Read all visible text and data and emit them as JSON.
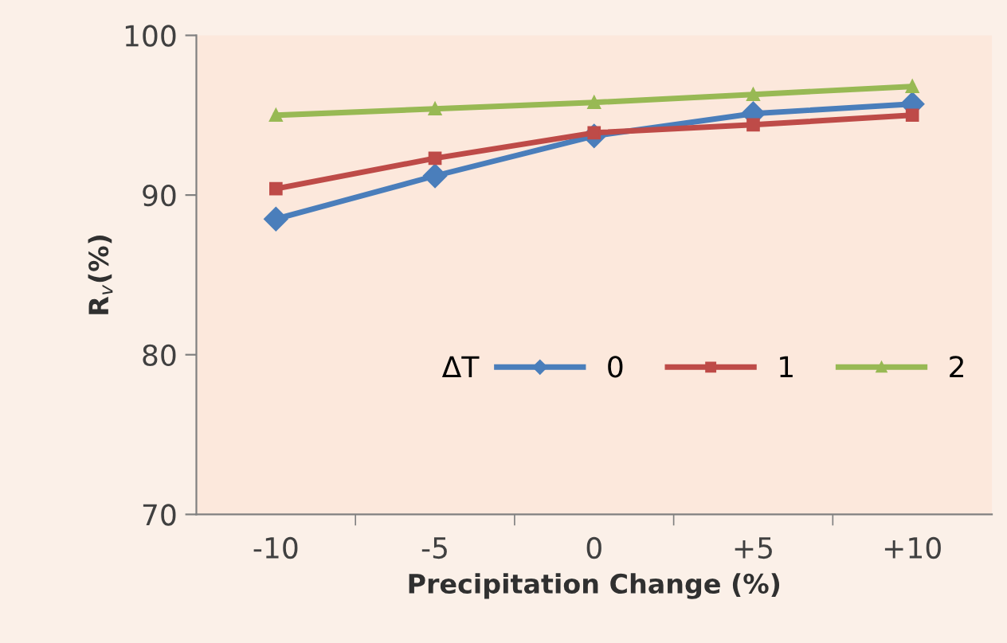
{
  "chart_data": {
    "type": "line",
    "xlabel": "Precipitation Change (%)",
    "ylabel": "R$_{v}$(%)",
    "categories": [
      "-10",
      "-5",
      "0",
      "+5",
      "+10"
    ],
    "series": [
      {
        "name": "0",
        "color": "#4a7ebb",
        "marker": "diamond",
        "values": [
          88.5,
          91.2,
          93.7,
          95.1,
          95.7
        ]
      },
      {
        "name": "1",
        "color": "#be4b48",
        "marker": "square",
        "values": [
          90.4,
          92.3,
          93.9,
          94.4,
          95.0
        ]
      },
      {
        "name": "2",
        "color": "#98b954",
        "marker": "triangle",
        "values": [
          95.0,
          95.4,
          95.8,
          96.3,
          96.8
        ]
      }
    ],
    "legend_title": "ΔT",
    "legend": "bottom right",
    "ylim": [
      70,
      100
    ],
    "yticks": [
      70,
      80,
      90,
      100
    ],
    "grid": false,
    "line_style": "solid"
  }
}
